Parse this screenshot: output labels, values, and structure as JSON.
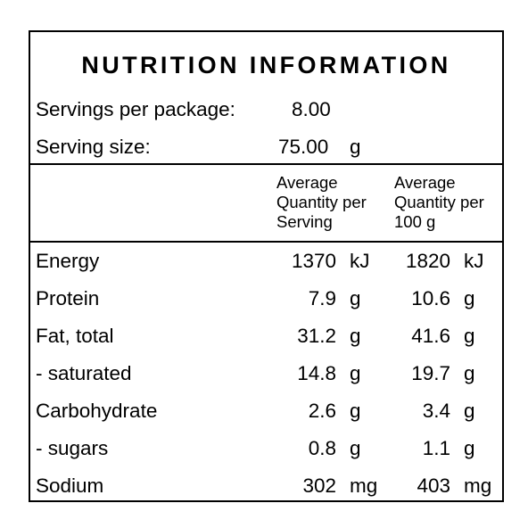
{
  "title": "NUTRITION INFORMATION",
  "servings": {
    "per_package_label": "Servings per package:",
    "per_package_value": "8.00",
    "size_label": "Serving size:",
    "size_value": "75.00",
    "size_unit": "g"
  },
  "header": {
    "col1": "Average\nQuantity per\nServing",
    "col2": "Average\nQuantity per\n100 g"
  },
  "rows": [
    {
      "name": "Energy",
      "serving": "1370",
      "serving_unit": "kJ",
      "per100": "1820",
      "per100_unit": "kJ"
    },
    {
      "name": "Protein",
      "serving": "7.9",
      "serving_unit": "g",
      "per100": "10.6",
      "per100_unit": "g"
    },
    {
      "name": "Fat, total",
      "serving": "31.2",
      "serving_unit": "g",
      "per100": "41.6",
      "per100_unit": "g"
    },
    {
      "name": "- saturated",
      "serving": "14.8",
      "serving_unit": "g",
      "per100": "19.7",
      "per100_unit": "g"
    },
    {
      "name": "Carbohydrate",
      "serving": "2.6",
      "serving_unit": "g",
      "per100": "3.4",
      "per100_unit": "g"
    },
    {
      "name": "- sugars",
      "serving": "0.8",
      "serving_unit": "g",
      "per100": "1.1",
      "per100_unit": "g"
    },
    {
      "name": "Sodium",
      "serving": "302",
      "serving_unit": "mg",
      "per100": "403",
      "per100_unit": "mg"
    }
  ]
}
